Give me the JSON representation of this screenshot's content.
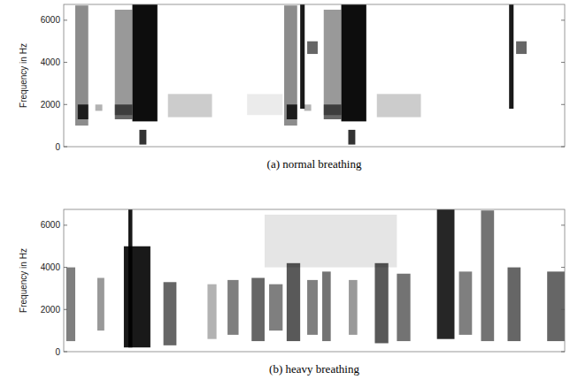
{
  "chart_data": [
    {
      "type": "spectrogram",
      "ylabel": "Frequency in Hz",
      "caption": "(a) normal breathing",
      "xlim": [
        0,
        100
      ],
      "ylim": [
        0,
        6750
      ],
      "yticks": [
        0,
        2000,
        4000,
        6000
      ],
      "tick_labels": "y",
      "color": "#000000",
      "cells": [
        [
          2.3,
          4.9,
          1000,
          6700,
          0.45
        ],
        [
          2.8,
          4.9,
          1300,
          2000,
          0.8
        ],
        [
          6.3,
          7.7,
          1700,
          2000,
          0.3
        ],
        [
          10.2,
          13.7,
          1500,
          6500,
          0.4
        ],
        [
          10.2,
          13.7,
          1300,
          2000,
          0.6
        ],
        [
          13.7,
          18.7,
          1200,
          6800,
          0.95
        ],
        [
          15.1,
          16.5,
          100,
          800,
          0.8
        ],
        [
          20.8,
          29.6,
          1400,
          2500,
          0.2
        ],
        [
          36.6,
          43.7,
          1500,
          2500,
          0.08
        ],
        [
          47.2,
          48.1,
          1800,
          6800,
          0.9
        ],
        [
          48.6,
          50.7,
          4400,
          5000,
          0.6
        ],
        [
          44.0,
          46.6,
          1000,
          6700,
          0.45
        ],
        [
          44.5,
          46.6,
          1300,
          2000,
          0.8
        ],
        [
          48.0,
          49.4,
          1700,
          2000,
          0.3
        ],
        [
          51.9,
          55.4,
          1500,
          6500,
          0.4
        ],
        [
          51.9,
          55.4,
          1300,
          2000,
          0.6
        ],
        [
          55.4,
          60.4,
          1200,
          6800,
          0.95
        ],
        [
          56.8,
          58.2,
          100,
          800,
          0.8
        ],
        [
          62.5,
          71.3,
          1400,
          2500,
          0.2
        ],
        [
          88.9,
          89.8,
          1800,
          6800,
          0.9
        ],
        [
          90.3,
          92.4,
          4400,
          5000,
          0.6
        ]
      ]
    },
    {
      "type": "spectrogram",
      "ylabel": "Frequency in Hz",
      "caption": "(b) heavy breathing",
      "xlim": [
        0,
        100
      ],
      "ylim": [
        0,
        6750
      ],
      "yticks": [
        0,
        2000,
        4000,
        6000
      ],
      "tick_labels": "y",
      "color": "#000000",
      "cells": [
        [
          0.5,
          2.3,
          500,
          4000,
          0.5
        ],
        [
          6.7,
          8.1,
          1000,
          3500,
          0.4
        ],
        [
          12.0,
          17.3,
          200,
          5000,
          0.9
        ],
        [
          12.9,
          13.7,
          200,
          7000,
          0.9
        ],
        [
          19.9,
          22.5,
          300,
          3300,
          0.6
        ],
        [
          28.7,
          30.5,
          600,
          3200,
          0.3
        ],
        [
          32.7,
          34.9,
          800,
          3400,
          0.5
        ],
        [
          37.5,
          40.1,
          500,
          3500,
          0.6
        ],
        [
          41.0,
          43.7,
          1000,
          3200,
          0.5
        ],
        [
          44.5,
          47.2,
          500,
          4200,
          0.65
        ],
        [
          48.6,
          50.7,
          800,
          3400,
          0.5
        ],
        [
          51.6,
          53.3,
          500,
          3800,
          0.55
        ],
        [
          56.9,
          58.6,
          800,
          3400,
          0.4
        ],
        [
          62.1,
          64.8,
          400,
          4200,
          0.65
        ],
        [
          66.5,
          69.2,
          500,
          3700,
          0.55
        ],
        [
          74.5,
          78.0,
          600,
          6900,
          0.85
        ],
        [
          78.9,
          81.5,
          800,
          3800,
          0.5
        ],
        [
          83.3,
          85.9,
          500,
          6700,
          0.55
        ],
        [
          88.6,
          91.2,
          500,
          4000,
          0.6
        ],
        [
          96.5,
          100,
          500,
          3800,
          0.6
        ],
        [
          40.1,
          66.5,
          4000,
          6500,
          0.1
        ]
      ]
    }
  ]
}
